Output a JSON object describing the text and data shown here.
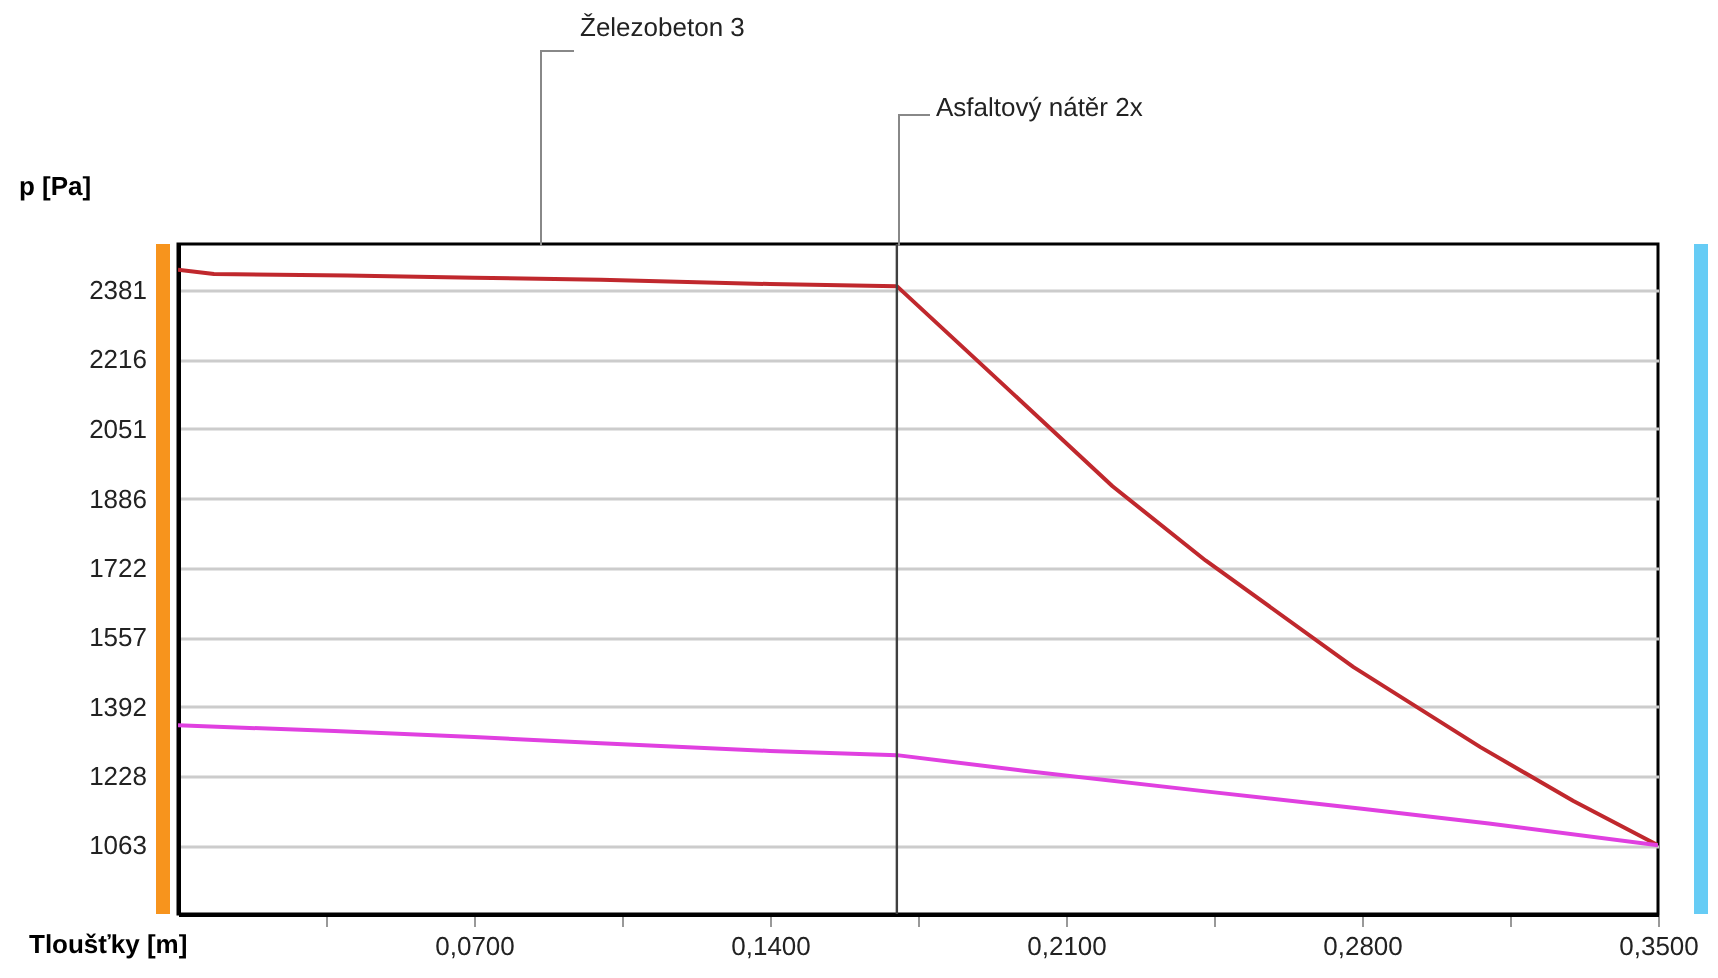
{
  "chart_data": {
    "type": "line",
    "xlabel": "Tloušťky [m]",
    "ylabel": "p [Pa]",
    "annotations": [
      "Železobeton 3",
      "Asfaltový nátěr 2x"
    ],
    "series": [
      {
        "color": "#c0282d",
        "x": [
          0,
          0.0085,
          0.04,
          0.07,
          0.1,
          0.14,
          0.17,
          0.194,
          0.221,
          0.243,
          0.278,
          0.308,
          0.33,
          0.35
        ],
        "values": [
          2429,
          2419,
          2415,
          2410,
          2405,
          2395,
          2390,
          2167,
          1915,
          1739,
          1486,
          1296,
          1168,
          1063
        ]
      },
      {
        "color": "#e040e0",
        "x": [
          0,
          0.037,
          0.07,
          0.1,
          0.14,
          0.17,
          0.2,
          0.243,
          0.28,
          0.31,
          0.35
        ],
        "values": [
          1348,
          1334,
          1320,
          1305,
          1287,
          1277,
          1240,
          1191,
          1150,
          1115,
          1063
        ]
      }
    ],
    "xlim": [
      0,
      0.35
    ],
    "ylim": [
      900,
      2490
    ],
    "xticks": [
      {
        "value": 0.035,
        "label": null
      },
      {
        "value": 0.07,
        "label": "0,0700"
      },
      {
        "value": 0.105,
        "label": null
      },
      {
        "value": 0.14,
        "label": "0,1400"
      },
      {
        "value": 0.175,
        "label": null
      },
      {
        "value": 0.21,
        "label": "0,2100"
      },
      {
        "value": 0.245,
        "label": null
      },
      {
        "value": 0.28,
        "label": "0,2800"
      },
      {
        "value": 0.315,
        "label": null
      },
      {
        "value": 0.35,
        "label": "0,3500"
      }
    ],
    "yticks": [
      1063,
      1228,
      1392,
      1557,
      1722,
      1886,
      2051,
      2216,
      2381
    ],
    "ref_lines": [
      {
        "axis": "x",
        "value": 0.17,
        "color": "#404040"
      }
    ],
    "grid": "y",
    "line_style": "solid",
    "marker": "none"
  }
}
